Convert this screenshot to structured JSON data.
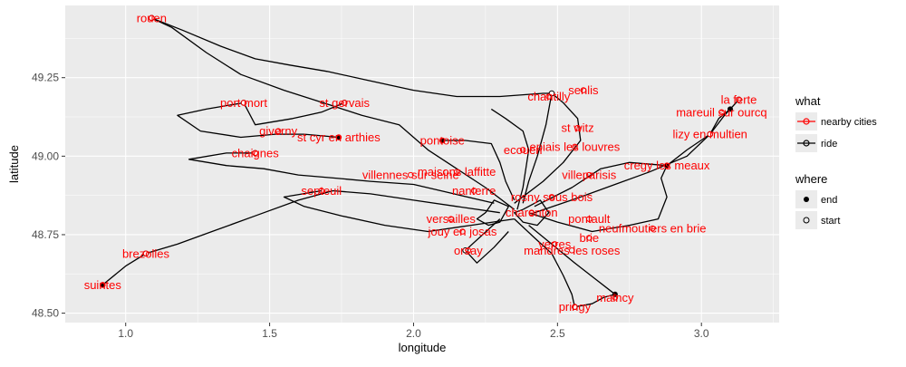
{
  "chart_data": {
    "type": "scatter",
    "xlabel": "longitude",
    "ylabel": "latitude",
    "xlim": [
      0.79,
      3.27
    ],
    "ylim": [
      48.47,
      49.48
    ],
    "grid": true,
    "x_ticks": [
      1.0,
      1.5,
      2.0,
      2.5,
      3.0
    ],
    "x_tick_labels": [
      "1.0",
      "1.5",
      "2.0",
      "2.5",
      "3.0"
    ],
    "y_ticks": [
      48.5,
      48.75,
      49.0,
      49.25
    ],
    "y_tick_labels": [
      "48.50",
      "48.75",
      "49.00",
      "49.25"
    ],
    "legend_position": "right",
    "legend": {
      "what_title": "what",
      "what_items": [
        {
          "label": "nearby cities",
          "color": "#ff0000"
        },
        {
          "label": "ride",
          "color": "#000000"
        }
      ],
      "where_title": "where",
      "where_items": [
        {
          "label": "end",
          "filled": true
        },
        {
          "label": "start",
          "filled": false
        }
      ]
    },
    "colors": {
      "cities": "#ff0000",
      "ride": "#000000",
      "panel": "#ebebeb",
      "grid": "#ffffff"
    },
    "cities": [
      {
        "name": "rouen",
        "lon": 1.09,
        "lat": 49.44
      },
      {
        "name": "st gervais",
        "lon": 1.76,
        "lat": 49.17
      },
      {
        "name": "port mort",
        "lon": 1.41,
        "lat": 49.17
      },
      {
        "name": "giverny",
        "lon": 1.53,
        "lat": 49.08
      },
      {
        "name": "chaignes",
        "lon": 1.45,
        "lat": 49.01
      },
      {
        "name": "st cyr en arthies",
        "lon": 1.74,
        "lat": 49.06
      },
      {
        "name": "pontoise",
        "lon": 2.1,
        "lat": 49.05
      },
      {
        "name": "villennes sur seine",
        "lon": 1.99,
        "lat": 48.94
      },
      {
        "name": "maisons laffitte",
        "lon": 2.15,
        "lat": 48.95
      },
      {
        "name": "septeuil",
        "lon": 1.68,
        "lat": 48.89
      },
      {
        "name": "brezolles",
        "lon": 1.07,
        "lat": 48.69
      },
      {
        "name": "suintes",
        "lon": 0.92,
        "lat": 48.59
      },
      {
        "name": "senlis",
        "lon": 2.59,
        "lat": 49.21
      },
      {
        "name": "chantilly",
        "lon": 2.47,
        "lat": 49.19
      },
      {
        "name": "st witz",
        "lon": 2.57,
        "lat": 49.09
      },
      {
        "name": "ecouen",
        "lon": 2.38,
        "lat": 49.02
      },
      {
        "name": "epiais les louvres",
        "lon": 2.56,
        "lat": 49.03
      },
      {
        "name": "mareuil sur ourcq",
        "lon": 3.07,
        "lat": 49.14
      },
      {
        "name": "la ferte",
        "lon": 3.13,
        "lat": 49.18
      },
      {
        "name": "lizy en multien",
        "lon": 3.03,
        "lat": 49.07
      },
      {
        "name": "cregy les meaux",
        "lon": 2.88,
        "lat": 48.97
      },
      {
        "name": "villeparisis",
        "lon": 2.61,
        "lat": 48.94
      },
      {
        "name": "nanterre",
        "lon": 2.21,
        "lat": 48.89
      },
      {
        "name": "rosny sous bois",
        "lon": 2.48,
        "lat": 48.87
      },
      {
        "name": "versailles",
        "lon": 2.13,
        "lat": 48.8
      },
      {
        "name": "charenton",
        "lon": 2.41,
        "lat": 48.82
      },
      {
        "name": "jouy en josas",
        "lon": 2.17,
        "lat": 48.76
      },
      {
        "name": "orsay",
        "lon": 2.19,
        "lat": 48.7
      },
      {
        "name": "neufmoutiers en brie",
        "lon": 2.83,
        "lat": 48.77
      },
      {
        "name": "pontault",
        "lon": 2.61,
        "lat": 48.8
      },
      {
        "name": "yerres",
        "lon": 2.49,
        "lat": 48.72
      },
      {
        "name": "mandres les roses",
        "lon": 2.55,
        "lat": 48.7
      },
      {
        "name": "brie",
        "lon": 2.61,
        "lat": 48.74
      },
      {
        "name": "maincy",
        "lon": 2.7,
        "lat": 48.55
      },
      {
        "name": "pringy",
        "lon": 2.56,
        "lat": 48.52
      }
    ],
    "ride_starts": [
      {
        "lon": 1.09,
        "lat": 49.44
      },
      {
        "lon": 1.76,
        "lat": 49.17
      },
      {
        "lon": 1.41,
        "lat": 49.17
      },
      {
        "lon": 1.45,
        "lat": 49.01
      },
      {
        "lon": 2.48,
        "lat": 49.2
      },
      {
        "lon": 3.13,
        "lat": 49.18
      },
      {
        "lon": 3.03,
        "lat": 49.07
      },
      {
        "lon": 2.56,
        "lat": 48.52
      },
      {
        "lon": 2.18,
        "lat": 48.7
      },
      {
        "lon": 1.07,
        "lat": 48.69
      }
    ],
    "ride_ends": [
      {
        "lon": 0.92,
        "lat": 48.59
      },
      {
        "lon": 1.74,
        "lat": 49.06
      },
      {
        "lon": 2.1,
        "lat": 49.05
      },
      {
        "lon": 3.1,
        "lat": 49.15
      },
      {
        "lon": 2.7,
        "lat": 48.56
      },
      {
        "lon": 2.88,
        "lat": 48.97
      }
    ],
    "rides": [
      [
        [
          2.35,
          48.83
        ],
        [
          2.25,
          48.9
        ],
        [
          2.15,
          48.96
        ],
        [
          2.05,
          49.02
        ],
        [
          1.95,
          49.1
        ],
        [
          1.82,
          49.13
        ],
        [
          1.72,
          49.16
        ],
        [
          1.55,
          49.21
        ],
        [
          1.4,
          49.26
        ],
        [
          1.28,
          49.33
        ],
        [
          1.16,
          49.41
        ],
        [
          1.09,
          49.44
        ]
      ],
      [
        [
          1.09,
          49.44
        ],
        [
          1.2,
          49.4
        ],
        [
          1.33,
          49.35
        ],
        [
          1.45,
          49.31
        ],
        [
          1.57,
          49.29
        ],
        [
          1.7,
          49.27
        ],
        [
          1.85,
          49.24
        ],
        [
          2.0,
          49.21
        ],
        [
          2.15,
          49.19
        ],
        [
          2.3,
          49.19
        ],
        [
          2.45,
          49.2
        ],
        [
          2.48,
          49.2
        ]
      ],
      [
        [
          2.48,
          49.2
        ],
        [
          2.46,
          49.1
        ],
        [
          2.43,
          49.0
        ],
        [
          2.4,
          48.92
        ],
        [
          2.38,
          48.85
        ]
      ],
      [
        [
          1.76,
          49.17
        ],
        [
          1.68,
          49.14
        ],
        [
          1.58,
          49.12
        ],
        [
          1.45,
          49.1
        ],
        [
          1.41,
          49.17
        ],
        [
          1.28,
          49.15
        ],
        [
          1.18,
          49.13
        ],
        [
          1.26,
          49.08
        ],
        [
          1.4,
          49.06
        ],
        [
          1.52,
          49.07
        ],
        [
          1.62,
          49.07
        ],
        [
          1.74,
          49.06
        ]
      ],
      [
        [
          1.45,
          49.01
        ],
        [
          1.35,
          49.01
        ],
        [
          1.22,
          48.99
        ],
        [
          1.35,
          48.97
        ],
        [
          1.48,
          48.96
        ],
        [
          1.6,
          48.94
        ],
        [
          1.73,
          48.93
        ],
        [
          1.85,
          48.92
        ],
        [
          2.0,
          48.91
        ],
        [
          2.14,
          48.88
        ],
        [
          2.28,
          48.85
        ]
      ],
      [
        [
          2.1,
          49.05
        ],
        [
          2.18,
          49.05
        ],
        [
          2.27,
          49.04
        ],
        [
          2.3,
          48.98
        ],
        [
          2.32,
          48.92
        ],
        [
          2.35,
          48.86
        ]
      ],
      [
        [
          2.3,
          48.82
        ],
        [
          2.15,
          48.84
        ],
        [
          2.0,
          48.86
        ],
        [
          1.85,
          48.88
        ],
        [
          1.72,
          48.89
        ],
        [
          1.6,
          48.86
        ],
        [
          1.45,
          48.81
        ],
        [
          1.3,
          48.76
        ],
        [
          1.18,
          48.72
        ],
        [
          1.07,
          48.69
        ],
        [
          1.0,
          48.65
        ],
        [
          0.92,
          48.59
        ]
      ],
      [
        [
          2.35,
          48.8
        ],
        [
          2.2,
          48.78
        ],
        [
          2.05,
          48.76
        ],
        [
          1.9,
          48.78
        ],
        [
          1.75,
          48.81
        ],
        [
          1.62,
          48.84
        ],
        [
          1.55,
          48.87
        ],
        [
          1.68,
          48.89
        ]
      ],
      [
        [
          2.42,
          48.84
        ],
        [
          2.55,
          48.9
        ],
        [
          2.65,
          48.96
        ],
        [
          2.75,
          48.98
        ],
        [
          2.88,
          48.97
        ],
        [
          2.95,
          49.02
        ],
        [
          3.03,
          49.07
        ],
        [
          3.08,
          49.13
        ],
        [
          3.13,
          49.18
        ]
      ],
      [
        [
          2.42,
          48.82
        ],
        [
          2.58,
          48.87
        ],
        [
          2.7,
          48.91
        ],
        [
          2.82,
          48.95
        ],
        [
          2.95,
          49.0
        ],
        [
          3.03,
          49.07
        ],
        [
          3.06,
          49.12
        ],
        [
          3.1,
          49.15
        ]
      ],
      [
        [
          2.4,
          48.82
        ],
        [
          2.5,
          48.79
        ],
        [
          2.62,
          48.76
        ],
        [
          2.75,
          48.78
        ],
        [
          2.85,
          48.8
        ],
        [
          2.88,
          48.87
        ],
        [
          2.86,
          48.93
        ],
        [
          2.88,
          48.97
        ]
      ],
      [
        [
          2.35,
          48.8
        ],
        [
          2.42,
          48.74
        ],
        [
          2.48,
          48.69
        ],
        [
          2.52,
          48.62
        ],
        [
          2.55,
          48.56
        ],
        [
          2.56,
          48.52
        ],
        [
          2.62,
          48.53
        ],
        [
          2.66,
          48.55
        ],
        [
          2.7,
          48.56
        ]
      ],
      [
        [
          2.4,
          48.78
        ],
        [
          2.48,
          48.72
        ],
        [
          2.56,
          48.66
        ],
        [
          2.63,
          48.61
        ],
        [
          2.7,
          48.56
        ]
      ],
      [
        [
          2.3,
          48.8
        ],
        [
          2.24,
          48.75
        ],
        [
          2.18,
          48.7
        ],
        [
          2.22,
          48.66
        ],
        [
          2.28,
          48.71
        ],
        [
          2.33,
          48.76
        ]
      ],
      [
        [
          2.35,
          48.85
        ],
        [
          2.45,
          48.92
        ],
        [
          2.52,
          48.98
        ],
        [
          2.58,
          49.05
        ],
        [
          2.57,
          49.12
        ],
        [
          2.52,
          49.17
        ],
        [
          2.48,
          49.2
        ]
      ],
      [
        [
          2.36,
          48.83
        ],
        [
          2.38,
          48.9
        ],
        [
          2.39,
          48.96
        ],
        [
          2.4,
          49.02
        ],
        [
          2.38,
          49.08
        ],
        [
          2.32,
          49.12
        ],
        [
          2.27,
          49.15
        ]
      ],
      [
        [
          2.25,
          48.82
        ],
        [
          2.28,
          48.86
        ],
        [
          2.33,
          48.84
        ],
        [
          2.3,
          48.79
        ],
        [
          2.26,
          48.78
        ],
        [
          2.22,
          48.8
        ],
        [
          2.25,
          48.82
        ]
      ],
      [
        [
          2.38,
          48.83
        ],
        [
          2.44,
          48.86
        ],
        [
          2.47,
          48.82
        ],
        [
          2.43,
          48.78
        ],
        [
          2.38,
          48.79
        ],
        [
          2.35,
          48.82
        ],
        [
          2.38,
          48.83
        ]
      ]
    ]
  }
}
